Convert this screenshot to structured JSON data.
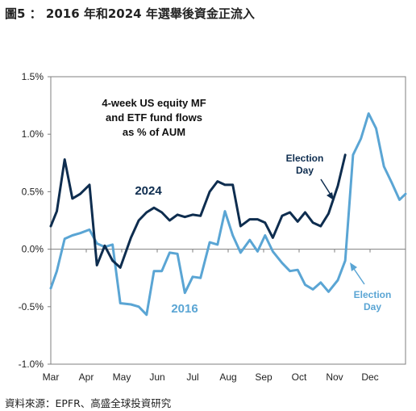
{
  "figure_title": "圖5 ： 2016 年和2024 年選舉後資金正流入",
  "source": "資料來源：EPFR、高盛全球投資研究",
  "colors": {
    "s2024": "#0e2d4f",
    "s2016": "#5aa5d4",
    "axis": "#7f7f7f"
  },
  "chart_data": {
    "type": "line",
    "title": "4-week US equity MF and ETF fund flows as % of AUM",
    "title_lines": [
      "4-week US equity MF",
      "and ETF fund flows",
      "as % of AUM"
    ],
    "xlabel": "",
    "ylabel": "",
    "x_tick_labels": [
      "Mar",
      "Apr",
      "May",
      "Jun",
      "Jul",
      "Aug",
      "Sep",
      "Oct",
      "Nov",
      "Dec"
    ],
    "y_tick_labels": [
      "1.5%",
      "1.0%",
      "0.5%",
      "0.0%",
      "-0.5%",
      "-1.0%"
    ],
    "y_ticks": [
      1.5,
      1.0,
      0.5,
      0.0,
      -0.5,
      -1.0
    ],
    "ylim": [
      -1.0,
      1.5
    ],
    "xlim": [
      0,
      10
    ],
    "grid": false,
    "legend": "none (series labelled directly)",
    "series": [
      {
        "name": "2024",
        "color": "#0e2d4f",
        "x": [
          0.0,
          0.17,
          0.39,
          0.61,
          0.83,
          1.09,
          1.3,
          1.52,
          1.74,
          1.96,
          2.26,
          2.48,
          2.7,
          2.91,
          3.13,
          3.35,
          3.57,
          3.78,
          4.0,
          4.22,
          4.48,
          4.7,
          4.91,
          5.13,
          5.35,
          5.61,
          5.83,
          6.04,
          6.26,
          6.52,
          6.74,
          6.96,
          7.17,
          7.39,
          7.61,
          7.83,
          8.09,
          8.3,
          8.52,
          8.74
        ],
        "values": [
          0.2,
          0.33,
          0.78,
          0.44,
          0.48,
          0.56,
          -0.14,
          0.03,
          -0.1,
          -0.16,
          0.1,
          0.25,
          0.32,
          0.36,
          0.32,
          0.25,
          0.3,
          0.28,
          0.3,
          0.29,
          0.5,
          0.59,
          0.56,
          0.56,
          0.2,
          0.26,
          0.26,
          0.23,
          0.1,
          0.29,
          0.32,
          0.24,
          0.32,
          0.23,
          0.2,
          0.31,
          0.55,
          0.82,
          null,
          null
        ]
      },
      {
        "name": "2016",
        "color": "#5aa5d4",
        "x": [
          0.0,
          0.17,
          0.39,
          0.61,
          0.83,
          1.09,
          1.3,
          1.52,
          1.74,
          1.96,
          2.26,
          2.48,
          2.7,
          2.91,
          3.13,
          3.35,
          3.57,
          3.78,
          4.0,
          4.22,
          4.48,
          4.7,
          4.91,
          5.13,
          5.35,
          5.61,
          5.83,
          6.04,
          6.26,
          6.52,
          6.74,
          6.96,
          7.17,
          7.39,
          7.61,
          7.83,
          8.09,
          8.3,
          8.52,
          8.74,
          8.96,
          9.17,
          9.39,
          9.61,
          9.83,
          10.0
        ],
        "values": [
          -0.34,
          -0.19,
          0.09,
          0.12,
          0.14,
          0.17,
          0.05,
          0.02,
          0.04,
          -0.47,
          -0.48,
          -0.5,
          -0.57,
          -0.19,
          -0.19,
          -0.03,
          -0.04,
          -0.38,
          -0.24,
          -0.25,
          0.06,
          0.04,
          0.33,
          0.12,
          -0.03,
          0.08,
          -0.02,
          0.12,
          -0.02,
          -0.12,
          -0.19,
          -0.18,
          -0.31,
          -0.35,
          -0.29,
          -0.37,
          -0.27,
          -0.1,
          0.82,
          0.96,
          1.18,
          1.05,
          0.72,
          0.58,
          0.43,
          0.48
        ]
      }
    ],
    "annotations": [
      {
        "id": "label-2024",
        "text": "2024"
      },
      {
        "id": "label-2016",
        "text": "2016"
      },
      {
        "id": "election-2024",
        "lines": [
          "Election",
          "Day"
        ]
      },
      {
        "id": "election-2016",
        "lines": [
          "Election",
          "Day"
        ]
      }
    ]
  }
}
